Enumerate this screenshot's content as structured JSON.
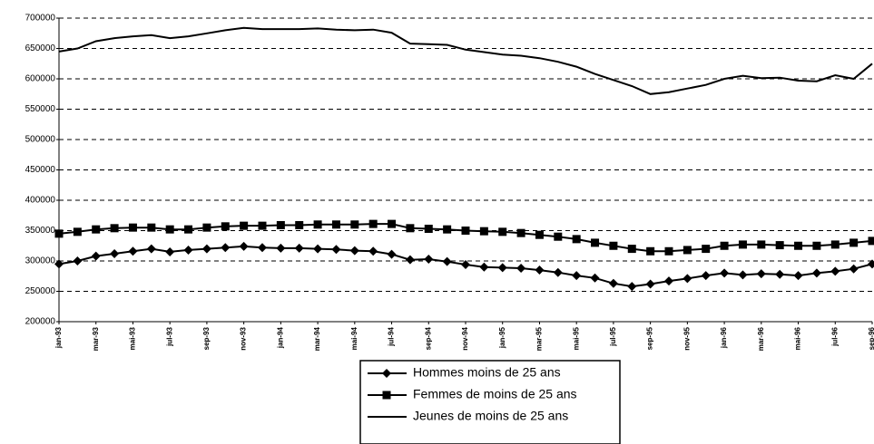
{
  "chart_data": {
    "type": "line",
    "categories": [
      "jan-93",
      null,
      "mar-93",
      null,
      "mai-93",
      null,
      "jul-93",
      null,
      "sep-93",
      null,
      "nov-93",
      null,
      "jan-94",
      null,
      "mar-94",
      null,
      "mai-94",
      null,
      "jul-94",
      null,
      "sep-94",
      null,
      "nov-94",
      null,
      "jan-95",
      null,
      "mar-95",
      null,
      "mai-95",
      null,
      "jul-95",
      null,
      "sep-95",
      null,
      "nov-95",
      null,
      "jan-96",
      null,
      "mar-96",
      null,
      "mai-96",
      null,
      "jul-96",
      null,
      "sep-96"
    ],
    "series": [
      {
        "name": "Hommes moins de 25 ans",
        "color": "#000000",
        "marker": "diamond",
        "values": [
          295000,
          300000,
          308000,
          312000,
          316000,
          320000,
          315000,
          318000,
          320000,
          322000,
          324000,
          322000,
          321000,
          321000,
          320000,
          319000,
          317000,
          316000,
          311000,
          302000,
          303000,
          299000,
          294000,
          290000,
          289000,
          288000,
          285000,
          281000,
          276000,
          272000,
          263000,
          258000,
          262000,
          267000,
          271000,
          276000,
          280000,
          277000,
          279000,
          278000,
          276000,
          280000,
          283000,
          287000,
          295000
        ]
      },
      {
        "name": "Femmes de moins de 25 ans",
        "color": "#000000",
        "marker": "square",
        "values": [
          345000,
          348000,
          352000,
          354000,
          355000,
          355000,
          352000,
          352000,
          355000,
          357000,
          358000,
          358000,
          359000,
          359000,
          360000,
          360000,
          360000,
          361000,
          361000,
          354000,
          353000,
          352000,
          350000,
          349000,
          348000,
          346000,
          343000,
          340000,
          336000,
          330000,
          325000,
          320000,
          316000,
          316000,
          318000,
          320000,
          325000,
          327000,
          327000,
          326000,
          325000,
          325000,
          327000,
          330000,
          333000
        ]
      },
      {
        "name": "Jeunes de moins de 25 ans",
        "color": "#000000",
        "marker": "none",
        "values": [
          645000,
          650000,
          662000,
          667000,
          670000,
          672000,
          667000,
          670000,
          675000,
          680000,
          684000,
          682000,
          682000,
          682000,
          683000,
          681000,
          680000,
          681000,
          676000,
          658000,
          657000,
          656000,
          648000,
          644000,
          640000,
          638000,
          634000,
          628000,
          620000,
          608000,
          598000,
          588000,
          575000,
          578000,
          584000,
          590000,
          600000,
          605000,
          601000,
          602000,
          597000,
          596000,
          606000,
          600000,
          625000
        ]
      }
    ],
    "ylim": [
      200000,
      700000
    ],
    "yticks": [
      200000,
      250000,
      300000,
      350000,
      400000,
      450000,
      500000,
      550000,
      600000,
      650000,
      700000
    ],
    "grid": true,
    "legend": "bottom"
  }
}
